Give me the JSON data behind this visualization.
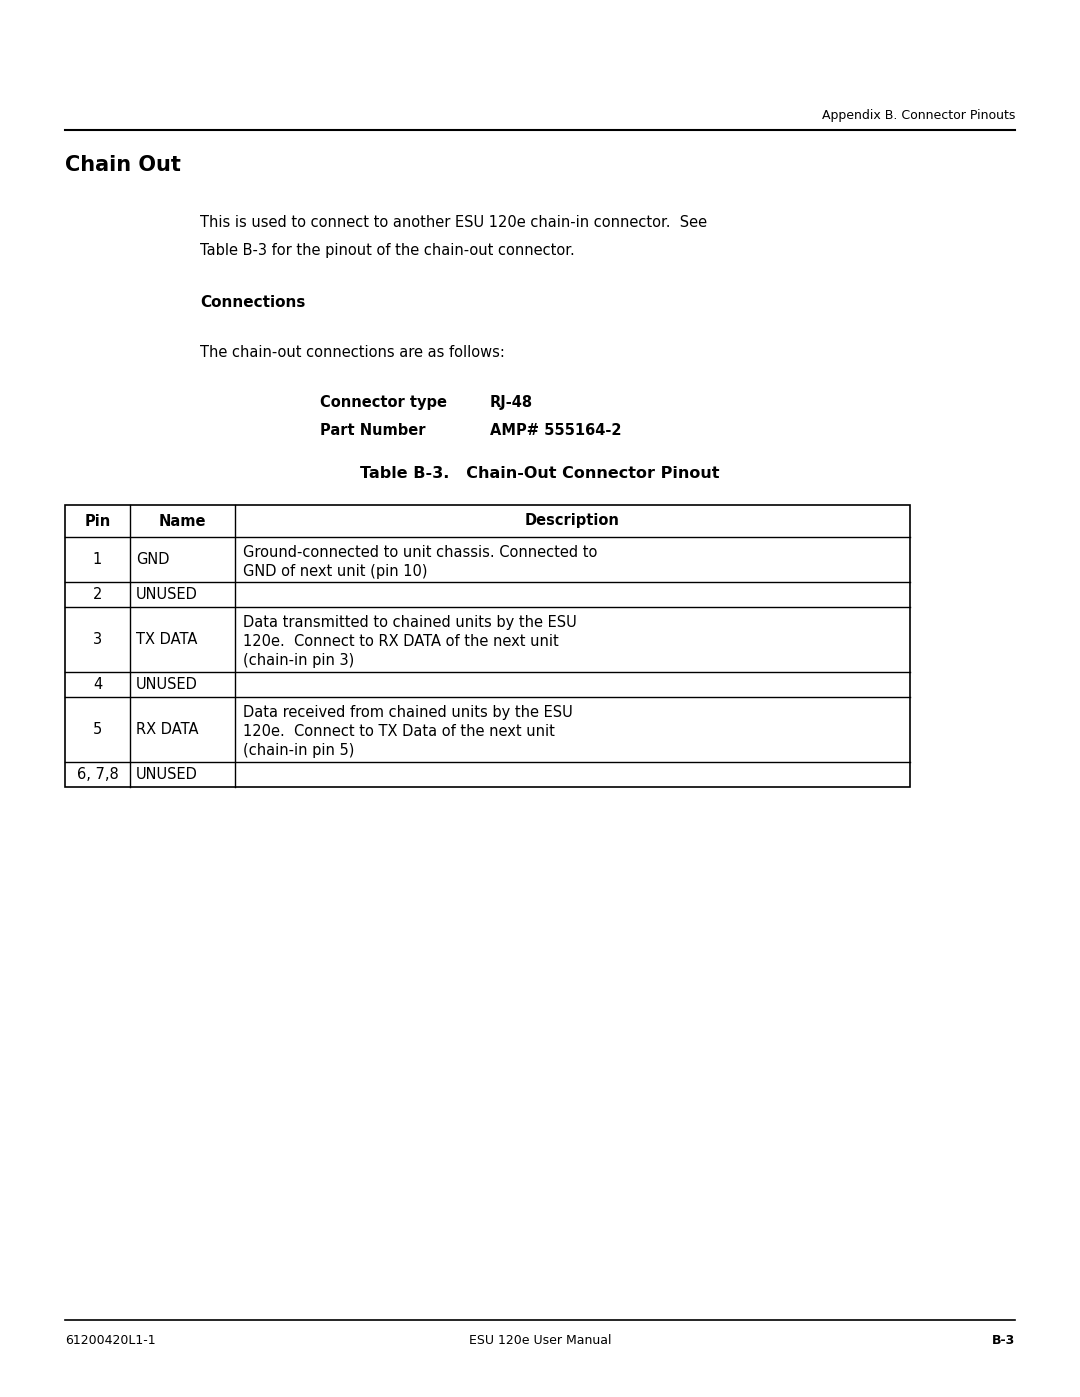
{
  "page_header_right": "Appendix B. Connector Pinouts",
  "section_title": "Chain Out",
  "body_text_1": "This is used to connect to another ESU 120e chain-in connector.  See",
  "body_text_2": "Table B-3 for the pinout of the chain-out connector.",
  "subsection_title": "Connections",
  "connections_text": "The chain-out connections are as follows:",
  "connector_label": "Connector type",
  "connector_value": "RJ-48",
  "partnumber_label": "Part Number",
  "partnumber_value": "AMP# 555164-2",
  "table_title": "Table B-3.   Chain-Out Connector Pinout",
  "table_headers": [
    "Pin",
    "Name",
    "Description"
  ],
  "table_rows": [
    [
      "1",
      "GND",
      "Ground-connected to unit chassis. Connected to\nGND of next unit (pin 10)"
    ],
    [
      "2",
      "UNUSED",
      ""
    ],
    [
      "3",
      "TX DATA",
      "Data transmitted to chained units by the ESU\n120e.  Connect to RX DATA of the next unit\n(chain-in pin 3)"
    ],
    [
      "4",
      "UNUSED",
      ""
    ],
    [
      "5",
      "RX DATA",
      "Data received from chained units by the ESU\n120e.  Connect to TX Data of the next unit\n(chain-in pin 5)"
    ],
    [
      "6, 7,8",
      "UNUSED",
      ""
    ]
  ],
  "footer_left": "61200420L1-1",
  "footer_center": "ESU 120e User Manual",
  "footer_right": "B-3",
  "bg_color": "#ffffff",
  "text_color": "#000000",
  "line_color": "#000000"
}
